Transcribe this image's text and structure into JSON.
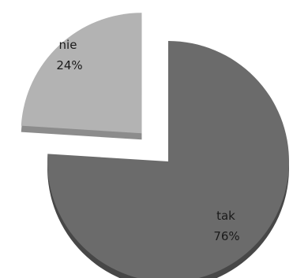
{
  "chart_data": {
    "type": "pie",
    "exploded": true,
    "style": "3d",
    "slices": [
      {
        "label": "nie",
        "percent_label": "24%",
        "value": 24,
        "color": "#b3b3b3",
        "side_color": "#8c8c8c",
        "exploded": true
      },
      {
        "label": "tak",
        "percent_label": "76%",
        "value": 76,
        "color": "#6b6b6b",
        "side_color": "#474747",
        "exploded": false
      }
    ]
  }
}
